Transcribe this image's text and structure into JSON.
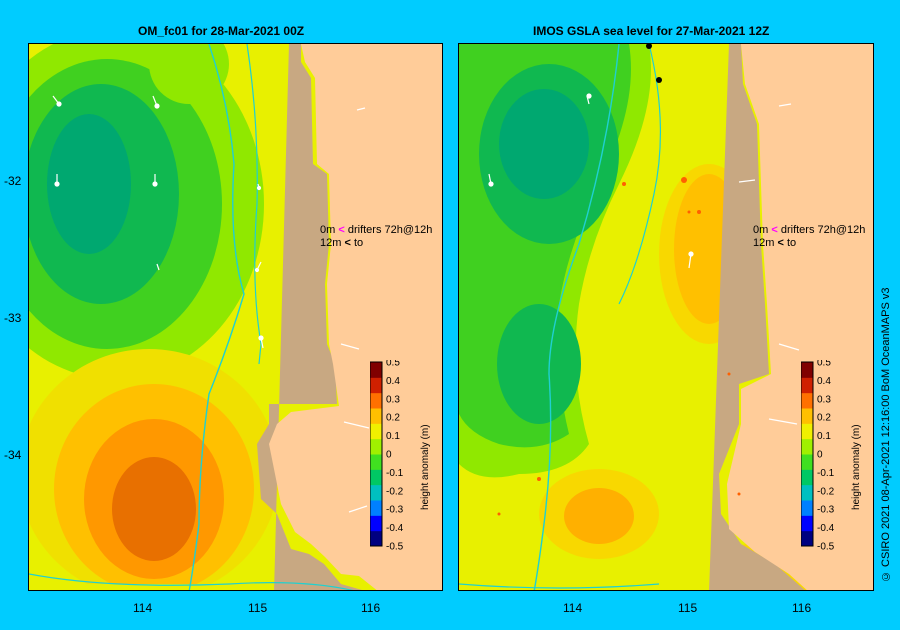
{
  "left_panel": {
    "title": "OM_fc01  for 28-Mar-2021 00Z",
    "drifter_legend": {
      "row1_label": "0m",
      "row1_text": "drifters 72h@12h",
      "row2_label": "12m",
      "row2_text": "to"
    }
  },
  "right_panel": {
    "title": "IMOS  GSLA sea level   for 27-Mar-2021 12Z",
    "drifter_legend": {
      "row1_label": "0m",
      "row1_text": "drifters 72h@12h",
      "row2_label": "12m",
      "row2_text": "to"
    }
  },
  "axes": {
    "x_ticks": [
      "114",
      "115",
      "116"
    ],
    "y_ticks": [
      "-32",
      "-33",
      "-34"
    ]
  },
  "colorbar": {
    "label": "height anomaly (m)",
    "ticks": [
      "0.5",
      "0.4",
      "0.3",
      "0.2",
      "0.1",
      "0",
      "-0.1",
      "-0.2",
      "-0.3",
      "-0.4",
      "-0.5"
    ],
    "colors": [
      "#000080",
      "#0000ff",
      "#0080ff",
      "#00c0c0",
      "#00c864",
      "#40e020",
      "#a0f000",
      "#f0f000",
      "#ffc000",
      "#ff7000",
      "#d02000",
      "#800000"
    ]
  },
  "credit": "© CSIRO 2021   08-Apr-2021 12:16:00 BoM OceanMAPS v3",
  "colors": {
    "background": "#00ccff",
    "land": "#ffcc99",
    "shelf": "#c8a882",
    "drifter_magenta": "#ff00ff"
  }
}
